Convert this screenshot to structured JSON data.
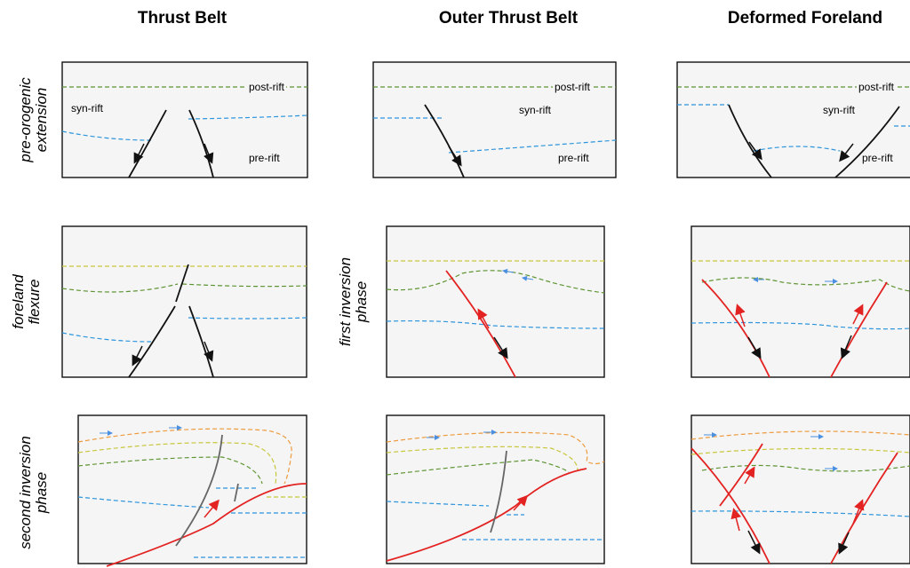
{
  "columns": [
    "Thrust Belt",
    "Outer Thrust Belt",
    "Deformed Foreland"
  ],
  "rows": [
    {
      "label": [
        "pre-orogenic",
        "extension"
      ]
    },
    {
      "label": [
        "foreland",
        "flexure"
      ]
    },
    {
      "label": [
        "second inversion",
        "phase"
      ]
    }
  ],
  "middle_label": [
    "first inversion",
    "phase"
  ],
  "panel_labels": {
    "thrust_belt": [
      "post-rift",
      "syn-rift",
      "pre-rift"
    ],
    "outer_thrust_belt": [
      "post-rift",
      "syn-rift",
      "pre-rift"
    ],
    "deformed_foreland": [
      "post-rift",
      "syn-rift",
      "pre-rift"
    ]
  }
}
